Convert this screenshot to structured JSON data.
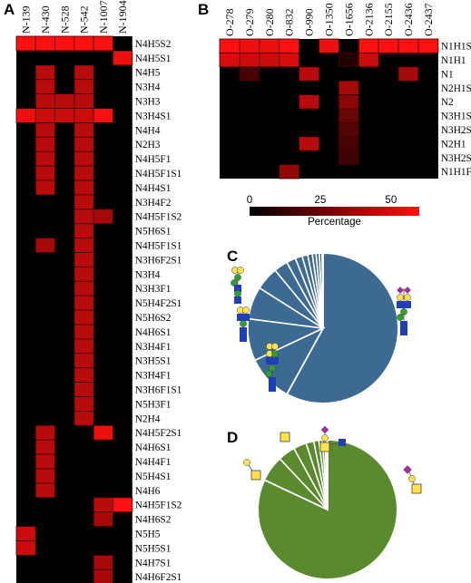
{
  "panels": {
    "A": {
      "letter": "A"
    },
    "B": {
      "letter": "B"
    },
    "C": {
      "letter": "C"
    },
    "D": {
      "letter": "D"
    }
  },
  "colors": {
    "background_cell": "#000000",
    "high": "#ff1010",
    "grid": "#4a0000",
    "pie_c": "#3d6a92",
    "pie_d": "#5b8a2e"
  },
  "chart_data": [
    {
      "type": "heatmap",
      "panel": "A",
      "columns": [
        "N-139",
        "N-430",
        "N-528",
        "N-542",
        "N-1007",
        "N-1904"
      ],
      "rows": [
        "N4H5S2",
        "N4H5S1",
        "N4H5",
        "N3H4",
        "N3H3",
        "N3H4S1",
        "N4H4",
        "N2H3",
        "N4H5F1",
        "N4H5F1S1",
        "N4H4S1",
        "N3H4F2",
        "N4H5F1S2",
        "N5H6S1",
        "N4H5F1S1",
        "N3H6F2S1",
        "N3H4",
        "N3H3F1",
        "N5H4F2S1",
        "N5H6S2",
        "N4H6S1",
        "N3H4F1",
        "N3H5S1",
        "N3H4F1",
        "N3H6F1S1",
        "N5H3F1",
        "N2H4",
        "N4H5F2S1",
        "N4H6S1",
        "N4H4F1",
        "N5H4S1",
        "N4H6",
        "N4H5F1S2",
        "N4H6S2",
        "N5H5",
        "N5H5S1",
        "N4H7S1",
        "N4H6F2S1"
      ],
      "values": [
        [
          60,
          60,
          60,
          60,
          60,
          0
        ],
        [
          0,
          0,
          0,
          0,
          0,
          55
        ],
        [
          0,
          40,
          0,
          40,
          0,
          0
        ],
        [
          0,
          40,
          0,
          40,
          0,
          0
        ],
        [
          0,
          40,
          40,
          40,
          0,
          0
        ],
        [
          55,
          45,
          45,
          45,
          58,
          0
        ],
        [
          0,
          40,
          0,
          40,
          0,
          0
        ],
        [
          0,
          40,
          0,
          40,
          0,
          0
        ],
        [
          0,
          40,
          0,
          40,
          0,
          0
        ],
        [
          0,
          40,
          0,
          40,
          0,
          0
        ],
        [
          0,
          40,
          0,
          40,
          0,
          0
        ],
        [
          0,
          0,
          0,
          40,
          0,
          0
        ],
        [
          0,
          0,
          0,
          40,
          35,
          0
        ],
        [
          0,
          0,
          0,
          40,
          0,
          0
        ],
        [
          0,
          35,
          0,
          40,
          0,
          0
        ],
        [
          0,
          0,
          0,
          40,
          0,
          0
        ],
        [
          0,
          0,
          0,
          40,
          0,
          0
        ],
        [
          0,
          0,
          0,
          40,
          0,
          0
        ],
        [
          0,
          0,
          0,
          40,
          0,
          0
        ],
        [
          0,
          0,
          0,
          40,
          0,
          0
        ],
        [
          0,
          0,
          0,
          40,
          0,
          0
        ],
        [
          0,
          0,
          0,
          40,
          0,
          0
        ],
        [
          0,
          0,
          0,
          40,
          0,
          0
        ],
        [
          0,
          0,
          0,
          40,
          0,
          0
        ],
        [
          0,
          0,
          0,
          40,
          0,
          0
        ],
        [
          0,
          0,
          0,
          40,
          0,
          0
        ],
        [
          0,
          0,
          0,
          40,
          0,
          0
        ],
        [
          0,
          40,
          0,
          0,
          55,
          0
        ],
        [
          0,
          40,
          0,
          0,
          0,
          0
        ],
        [
          0,
          40,
          0,
          0,
          0,
          0
        ],
        [
          0,
          40,
          0,
          0,
          0,
          0
        ],
        [
          0,
          40,
          0,
          0,
          0,
          0
        ],
        [
          0,
          0,
          0,
          0,
          40,
          60
        ],
        [
          0,
          0,
          0,
          0,
          35,
          0
        ],
        [
          45,
          0,
          0,
          0,
          0,
          0
        ],
        [
          45,
          0,
          0,
          0,
          0,
          0
        ],
        [
          0,
          0,
          0,
          0,
          35,
          0
        ],
        [
          0,
          0,
          0,
          0,
          35,
          0
        ]
      ]
    },
    {
      "type": "heatmap",
      "panel": "B",
      "columns": [
        "O-278",
        "O-279",
        "O-280",
        "O-832",
        "O-990",
        "O-1350",
        "O-1656",
        "O-2136",
        "O-2155",
        "O-2436",
        "O-2437"
      ],
      "rows": [
        "N1H1S1",
        "N1H1",
        "N1",
        "N2H1S1",
        "N2",
        "N3H1S1",
        "N3H2S2",
        "N2H1",
        "N3H2S1",
        "N1H1F1"
      ],
      "values": [
        [
          60,
          55,
          55,
          60,
          0,
          55,
          0,
          60,
          60,
          60,
          60
        ],
        [
          48,
          45,
          45,
          48,
          0,
          0,
          5,
          45,
          0,
          0,
          0
        ],
        [
          0,
          12,
          0,
          0,
          40,
          0,
          0,
          0,
          0,
          35,
          0
        ],
        [
          0,
          0,
          0,
          0,
          0,
          0,
          35,
          0,
          0,
          0,
          0
        ],
        [
          0,
          0,
          0,
          0,
          40,
          0,
          28,
          0,
          0,
          0,
          0
        ],
        [
          0,
          0,
          0,
          0,
          0,
          0,
          20,
          0,
          0,
          0,
          0
        ],
        [
          0,
          0,
          0,
          0,
          0,
          0,
          15,
          0,
          0,
          0,
          0
        ],
        [
          0,
          0,
          0,
          0,
          40,
          0,
          12,
          0,
          0,
          0,
          0
        ],
        [
          0,
          0,
          0,
          0,
          0,
          0,
          10,
          0,
          0,
          0,
          0
        ],
        [
          0,
          0,
          0,
          30,
          0,
          0,
          0,
          0,
          0,
          0,
          0
        ]
      ],
      "colorbar": {
        "ticks": [
          "0",
          "25",
          "50"
        ],
        "label": "Percentage",
        "range": [
          0,
          60
        ]
      }
    },
    {
      "type": "pie",
      "panel": "C",
      "values": [
        58,
        10,
        9,
        7,
        5,
        3,
        2,
        1.5,
        1.2,
        1,
        0.8,
        0.7,
        0.6,
        0.2
      ]
    },
    {
      "type": "pie",
      "panel": "D",
      "values": [
        82,
        6,
        4,
        3,
        1.8,
        1.2,
        0.8,
        0.6,
        0.4,
        0.2
      ]
    }
  ]
}
